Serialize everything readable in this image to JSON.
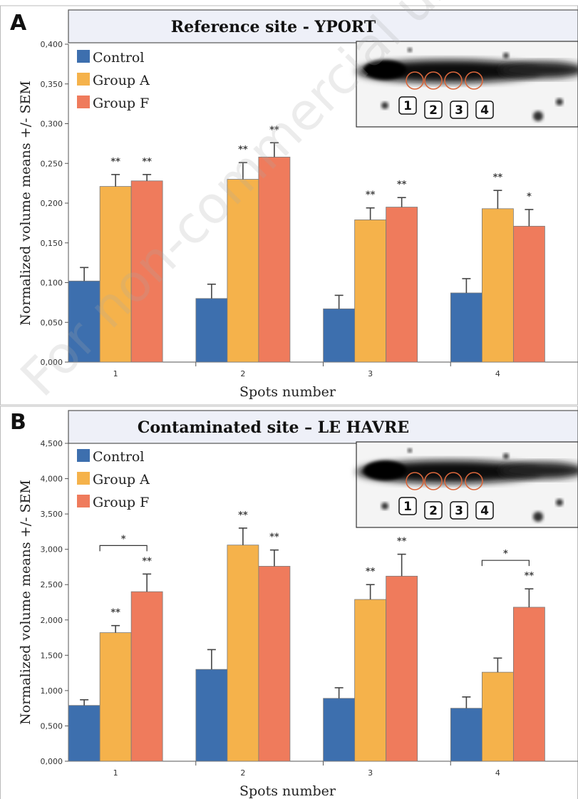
{
  "watermark": "For non-commercial use only",
  "colors": {
    "control": "#3d6fae",
    "group_a": "#f5b24b",
    "group_f": "#ef7b5c"
  },
  "chart_data": [
    {
      "type": "bar",
      "panel_label": "A",
      "title": "Reference site - YPORT",
      "xlabel": "Spots number",
      "ylabel": "Normalized volume means +/- SEM",
      "categories": [
        "1",
        "2",
        "3",
        "4"
      ],
      "ylim": [
        0,
        0.4
      ],
      "yticks": [
        "0,000",
        "0,050",
        "0,100",
        "0,150",
        "0,200",
        "0,250",
        "0,300",
        "0,350",
        "0,400"
      ],
      "legend_position": "top-left",
      "grid": false,
      "series": [
        {
          "name": "Control",
          "values": [
            0.102,
            0.08,
            0.067,
            0.087
          ],
          "errors": [
            0.017,
            0.018,
            0.017,
            0.018
          ]
        },
        {
          "name": "Group A",
          "values": [
            0.221,
            0.23,
            0.179,
            0.193
          ],
          "errors": [
            0.015,
            0.021,
            0.015,
            0.023
          ]
        },
        {
          "name": "Group F",
          "values": [
            0.228,
            0.258,
            0.195,
            0.171
          ],
          "errors": [
            0.008,
            0.018,
            0.012,
            0.021
          ]
        }
      ],
      "significance": [
        {
          "category": 0,
          "series": 1,
          "label": "**"
        },
        {
          "category": 0,
          "series": 2,
          "label": "**"
        },
        {
          "category": 1,
          "series": 1,
          "label": "**"
        },
        {
          "category": 1,
          "series": 2,
          "label": "**"
        },
        {
          "category": 2,
          "series": 1,
          "label": "**"
        },
        {
          "category": 2,
          "series": 2,
          "label": "**"
        },
        {
          "category": 3,
          "series": 1,
          "label": "**"
        },
        {
          "category": 3,
          "series": 2,
          "label": "*"
        }
      ],
      "brackets": [],
      "inset_spots": [
        "1",
        "2",
        "3",
        "4"
      ]
    },
    {
      "type": "bar",
      "panel_label": "B",
      "title": "Contaminated site – LE HAVRE",
      "xlabel": "Spots number",
      "ylabel": "Normalized volume means +/- SEM",
      "categories": [
        "1",
        "2",
        "3",
        "4"
      ],
      "ylim": [
        0,
        4.5
      ],
      "yticks": [
        "0,000",
        "0,500",
        "1,000",
        "1,500",
        "2,000",
        "2,500",
        "3,000",
        "3,500",
        "4,000",
        "4,500"
      ],
      "legend_position": "top-left",
      "grid": false,
      "series": [
        {
          "name": "Control",
          "values": [
            0.79,
            1.3,
            0.89,
            0.75
          ],
          "errors": [
            0.08,
            0.28,
            0.15,
            0.16
          ]
        },
        {
          "name": "Group A",
          "values": [
            1.82,
            3.06,
            2.29,
            1.26
          ],
          "errors": [
            0.1,
            0.24,
            0.21,
            0.2
          ]
        },
        {
          "name": "Group F",
          "values": [
            2.4,
            2.76,
            2.62,
            2.18
          ],
          "errors": [
            0.25,
            0.23,
            0.31,
            0.26
          ]
        }
      ],
      "significance": [
        {
          "category": 0,
          "series": 1,
          "label": "**"
        },
        {
          "category": 0,
          "series": 2,
          "label": "**"
        },
        {
          "category": 1,
          "series": 1,
          "label": "**"
        },
        {
          "category": 1,
          "series": 2,
          "label": "**"
        },
        {
          "category": 2,
          "series": 1,
          "label": "**"
        },
        {
          "category": 2,
          "series": 2,
          "label": "**"
        },
        {
          "category": 3,
          "series": 2,
          "label": "**"
        }
      ],
      "brackets": [
        {
          "category": 0,
          "from_series": 0,
          "to_series": 2,
          "label": "*"
        },
        {
          "category": 3,
          "from_series": 0,
          "to_series": 2,
          "label": "*"
        }
      ],
      "inset_spots": [
        "1",
        "2",
        "3",
        "4"
      ]
    }
  ]
}
